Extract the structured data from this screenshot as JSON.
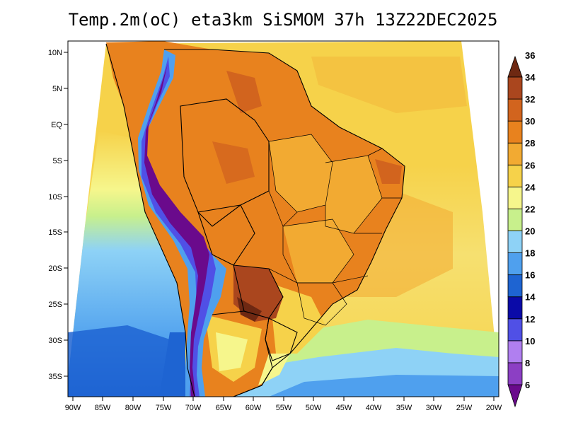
{
  "title": "Temp.2m(oC) eta3km SiSMOM 37h 13Z22DEC2025",
  "map": {
    "lat_labels": [
      "10N",
      "5N",
      "EQ",
      "5S",
      "10S",
      "15S",
      "20S",
      "25S",
      "30S",
      "35S"
    ],
    "lon_labels": [
      "90W",
      "85W",
      "80W",
      "75W",
      "70W",
      "65W",
      "60W",
      "55W",
      "50W",
      "45W",
      "40W",
      "35W",
      "30W",
      "25W",
      "20W"
    ]
  },
  "colorbar": {
    "levels": [
      "6",
      "8",
      "10",
      "12",
      "14",
      "16",
      "18",
      "20",
      "22",
      "24",
      "26",
      "28",
      "30",
      "32",
      "34",
      "36"
    ],
    "colors": [
      "#6a0a8c",
      "#8c3fc4",
      "#b07ff0",
      "#5050e6",
      "#0a0aa8",
      "#1e64d2",
      "#4fa0ee",
      "#8ed2f6",
      "#c8f08c",
      "#f6f68c",
      "#f6d24a",
      "#f2aa32",
      "#e8821e",
      "#d2641e",
      "#aa461e",
      "#6e2812"
    ]
  }
}
